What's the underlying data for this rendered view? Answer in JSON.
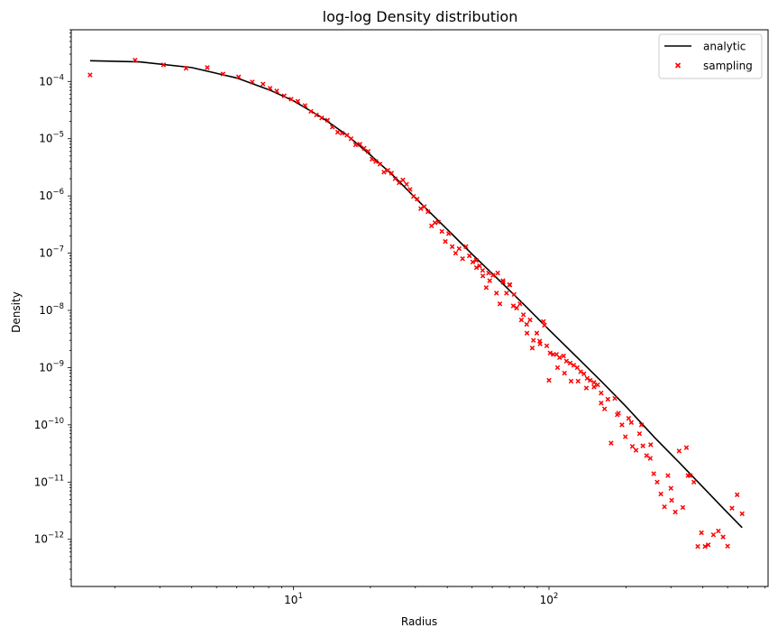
{
  "chart_data": {
    "type": "line+scatter",
    "title": "log-log Density distribution",
    "xlabel": "Radius",
    "ylabel": "Density",
    "xscale": "log",
    "yscale": "log",
    "xlim": [
      1.35,
      720
    ],
    "ylim": [
      1.5e-13,
      0.0008
    ],
    "grid": false,
    "legend_position": "top-right",
    "x_major_ticks": [
      {
        "value": 10,
        "base": "10",
        "exp": "1"
      },
      {
        "value": 100,
        "base": "10",
        "exp": "2"
      }
    ],
    "y_major_ticks": [
      {
        "value": 0.0001,
        "base": "10",
        "exp": "−4"
      },
      {
        "value": 1e-05,
        "base": "10",
        "exp": "−5"
      },
      {
        "value": 1e-06,
        "base": "10",
        "exp": "−6"
      },
      {
        "value": 1e-07,
        "base": "10",
        "exp": "−7"
      },
      {
        "value": 1e-08,
        "base": "10",
        "exp": "−8"
      },
      {
        "value": 1e-09,
        "base": "10",
        "exp": "−9"
      },
      {
        "value": 1e-10,
        "base": "10",
        "exp": "−10"
      },
      {
        "value": 1e-11,
        "base": "10",
        "exp": "−11"
      },
      {
        "value": 1e-12,
        "base": "10",
        "exp": "−12"
      }
    ],
    "series": [
      {
        "name": "analytic",
        "kind": "line",
        "color": "#000000",
        "x": [
          1.6,
          2.5,
          4,
          6,
          8,
          10,
          13,
          16,
          20,
          25,
          30,
          40,
          50,
          65,
          80,
          100,
          130,
          160,
          200,
          260,
          320,
          400,
          480,
          570
        ],
        "y": [
          0.00023,
          0.00022,
          0.000175,
          0.000115,
          7.2e-05,
          4.6e-05,
          2.3e-05,
          1.2e-05,
          5.2e-06,
          2.1e-06,
          9.2e-07,
          2.6e-07,
          9.6e-08,
          3.1e-08,
          1.25e-08,
          4.6e-09,
          1.45e-09,
          5.8e-10,
          2.1e-10,
          5.9e-11,
          2.3e-11,
          8.2e-12,
          3.5e-12,
          1.6e-12
        ]
      },
      {
        "name": "sampling",
        "kind": "scatter",
        "color": "#ff0000",
        "x": [
          1.6,
          2.4,
          3.1,
          3.8,
          4.6,
          5.3,
          6.1,
          6.9,
          7.6,
          8.1,
          8.6,
          9.2,
          9.8,
          10.4,
          11.1,
          11.7,
          12.3,
          12.9,
          13.6,
          14.2,
          14.9,
          15.5,
          16.2,
          16.8,
          17.5,
          18.2,
          18.9,
          19.6,
          20.3,
          21.0,
          21.8,
          22.6,
          23.4,
          24.2,
          25.0,
          25.9,
          26.8,
          27.7,
          28.6,
          29.5,
          30.5,
          31.5,
          32.5,
          33.6,
          34.7,
          35.8,
          36.9,
          38.1,
          39.3,
          40.5,
          41.8,
          43.1,
          44.5,
          45.9,
          47.3,
          48.8,
          50.3,
          51.9,
          53.5,
          55.1,
          56.8,
          58.6,
          60.4,
          62.3,
          64.2,
          66.2,
          68.2,
          70.3,
          72.5,
          74.7,
          77.0,
          79.4,
          81.8,
          84.3,
          86.9,
          89.6,
          92.3,
          95.1,
          98.0,
          101,
          104,
          107,
          110,
          114,
          117,
          121,
          125,
          129,
          133,
          137,
          141,
          145,
          150,
          155,
          160,
          165,
          170,
          175,
          181,
          187,
          193,
          199,
          205,
          212,
          219,
          226,
          233,
          241,
          249,
          257,
          265,
          274,
          283,
          292,
          302,
          312,
          323,
          334,
          345,
          357,
          369,
          382,
          395,
          408,
          420,
          440,
          460,
          480,
          500,
          520,
          545,
          570,
          78,
          82,
          86,
          92,
          96,
          100,
          63,
          66,
          70,
          73,
          52,
          55,
          58,
          108,
          115,
          122,
          130,
          140,
          150,
          160,
          185,
          210,
          230,
          250,
          300,
          350
        ],
        "y": [
          0.00013,
          0.000235,
          0.000195,
          0.00017,
          0.000175,
          0.000135,
          0.00012,
          9.8e-05,
          9e-05,
          7.6e-05,
          6.8e-05,
          5.6e-05,
          4.9e-05,
          4.5e-05,
          3.8e-05,
          3e-05,
          2.6e-05,
          2.3e-05,
          2.1e-05,
          1.6e-05,
          1.3e-05,
          1.25e-05,
          1.15e-05,
          1e-05,
          7.8e-06,
          8e-06,
          6.8e-06,
          6e-06,
          4.4e-06,
          4e-06,
          3.6e-06,
          2.6e-06,
          2.8e-06,
          2.5e-06,
          2e-06,
          1.7e-06,
          1.9e-06,
          1.6e-06,
          1.3e-06,
          9.8e-07,
          8.8e-07,
          6e-07,
          6.5e-07,
          5.3e-07,
          3e-07,
          3.4e-07,
          3.5e-07,
          2.4e-07,
          1.6e-07,
          2.2e-07,
          1.3e-07,
          1e-07,
          1.2e-07,
          8e-08,
          1.3e-07,
          9e-08,
          7e-08,
          7.5e-08,
          6e-08,
          4e-08,
          2.5e-08,
          3.3e-08,
          4.1e-08,
          2e-08,
          1.3e-08,
          3.1e-08,
          2e-08,
          2.8e-08,
          1.2e-08,
          1.1e-08,
          1.3e-08,
          8.4e-09,
          5.7e-09,
          6.8e-09,
          3e-09,
          4e-09,
          2.6e-09,
          6.4e-09,
          2.4e-09,
          1.8e-09,
          1.7e-09,
          1.7e-09,
          1.5e-09,
          1.6e-09,
          1.3e-09,
          1.2e-09,
          1.1e-09,
          1e-09,
          8.5e-10,
          7.8e-10,
          6.5e-10,
          6e-10,
          5.5e-10,
          5e-10,
          3.6e-10,
          1.9e-10,
          2.8e-10,
          4.8e-11,
          2.9e-10,
          1.6e-10,
          1e-10,
          6.2e-11,
          1.3e-10,
          4.2e-11,
          3.6e-11,
          7e-11,
          4.3e-11,
          2.9e-11,
          2.6e-11,
          1.4e-11,
          1e-11,
          6.2e-12,
          3.7e-12,
          1.3e-11,
          4.8e-12,
          3e-12,
          3.5e-11,
          3.6e-12,
          4e-11,
          1.3e-11,
          1e-11,
          7.5e-13,
          1.3e-12,
          7.5e-13,
          8e-13,
          1.2e-12,
          1.4e-12,
          1.1e-12,
          7.6e-13,
          3.5e-12,
          6e-12,
          2.8e-12,
          6.8e-09,
          4e-09,
          2.2e-09,
          2.9e-09,
          5.5e-09,
          6e-10,
          4.5e-08,
          3.3e-08,
          2.8e-08,
          1.9e-08,
          5.6e-08,
          5e-08,
          4.5e-08,
          1e-09,
          8e-10,
          5.8e-10,
          5.8e-10,
          4.4e-10,
          4.6e-10,
          2.4e-10,
          1.5e-10,
          1.1e-10,
          1e-10,
          4.5e-11,
          7.8e-12,
          1.3e-11
        ]
      }
    ]
  }
}
